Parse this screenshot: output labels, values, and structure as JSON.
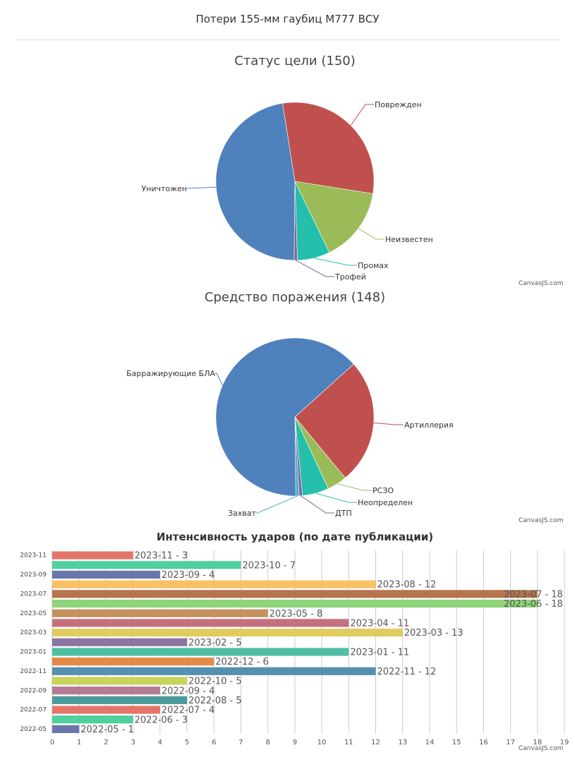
{
  "page": {
    "title": "Потери 155-мм гаубиц M777 ВСУ",
    "credit": "CanvasJS.com"
  },
  "chart_data": [
    {
      "type": "pie",
      "title": "Статус цели (150)",
      "slices": [
        {
          "label": "Поврежден",
          "value": 45,
          "color": "#C0504E"
        },
        {
          "label": "Неизвестен",
          "value": 23,
          "color": "#9BBB58"
        },
        {
          "label": "Промах",
          "value": 10,
          "color": "#23BFAA"
        },
        {
          "label": "Трофей",
          "value": 1,
          "color": "#8064A1"
        },
        {
          "label": "Уничтожен",
          "value": 71,
          "color": "#4F81BC"
        }
      ]
    },
    {
      "type": "pie",
      "title": "Средство поражения (148)",
      "slices": [
        {
          "label": "Артиллерия",
          "value": 38,
          "color": "#C0504E"
        },
        {
          "label": "РСЗО",
          "value": 6,
          "color": "#9BBB58"
        },
        {
          "label": "Неопределен",
          "value": 8,
          "color": "#23BFAA"
        },
        {
          "label": "ДТП",
          "value": 1,
          "color": "#8064A1"
        },
        {
          "label": "Захват",
          "value": 1,
          "color": "#4AACC5"
        },
        {
          "label": "Барражирующие БЛА",
          "value": 94,
          "color": "#4F81BC"
        }
      ]
    },
    {
      "type": "bar",
      "title": "Интенсивность ударов (по дате публикации)",
      "xlim": [
        0,
        19
      ],
      "ticks": [
        0,
        1,
        2,
        3,
        4,
        5,
        6,
        7,
        8,
        9,
        10,
        11,
        12,
        13,
        14,
        15,
        16,
        17,
        18,
        19
      ],
      "axis_labels": [
        "2023-11",
        "2023-09",
        "2023-07",
        "2023-05",
        "2023-03",
        "2023-01",
        "2022-11",
        "2022-09",
        "2022-07",
        "2022-05"
      ],
      "bars": [
        {
          "label": "2023-11",
          "value": 3,
          "color": "#E5756A",
          "text": "2023-11 - 3"
        },
        {
          "label": "2023-10",
          "value": 7,
          "color": "#50CF9F",
          "text": "2023-10 - 7"
        },
        {
          "label": "2023-09",
          "value": 4,
          "color": "#6A76AB",
          "text": "2023-09 - 4"
        },
        {
          "label": "2023-08",
          "value": 12,
          "color": "#F9C166",
          "text": "2023-08 - 12"
        },
        {
          "label": "2023-07",
          "value": 18,
          "color": "#B5754E",
          "text": "2023-07 - 18"
        },
        {
          "label": "2023-06",
          "value": 18,
          "color": "#8FD47A",
          "text": "2023-06 - 18"
        },
        {
          "label": "2023-05",
          "value": 8,
          "color": "#C3915E",
          "text": "2023-05 - 8"
        },
        {
          "label": "2023-04",
          "value": 11,
          "color": "#C6707E",
          "text": "2023-04 - 11"
        },
        {
          "label": "2023-03",
          "value": 13,
          "color": "#E0CC5E",
          "text": "2023-03 - 13"
        },
        {
          "label": "2023-02",
          "value": 5,
          "color": "#8C74A3",
          "text": "2023-02 - 5"
        },
        {
          "label": "2023-01",
          "value": 11,
          "color": "#4FBFA3",
          "text": "2023-01 - 11"
        },
        {
          "label": "2022-12",
          "value": 6,
          "color": "#E4894A",
          "text": "2022-12 - 6"
        },
        {
          "label": "2022-11",
          "value": 12,
          "color": "#5490B0",
          "text": "2022-11 - 12"
        },
        {
          "label": "2022-10",
          "value": 5,
          "color": "#CAD45A",
          "text": "2022-10 - 5"
        },
        {
          "label": "2022-09",
          "value": 4,
          "color": "#B57A95",
          "text": "2022-09 - 4"
        },
        {
          "label": "2022-08",
          "value": 5,
          "color": "#4A9B9B",
          "text": "2022-08 - 5"
        },
        {
          "label": "2022-07",
          "value": 4,
          "color": "#E5756A",
          "text": "2022-07 - 4"
        },
        {
          "label": "2022-06",
          "value": 3,
          "color": "#50CF9F",
          "text": "2022-06 - 3"
        },
        {
          "label": "2022-05",
          "value": 1,
          "color": "#6A76AB",
          "text": "2022-05 - 1"
        }
      ]
    }
  ]
}
